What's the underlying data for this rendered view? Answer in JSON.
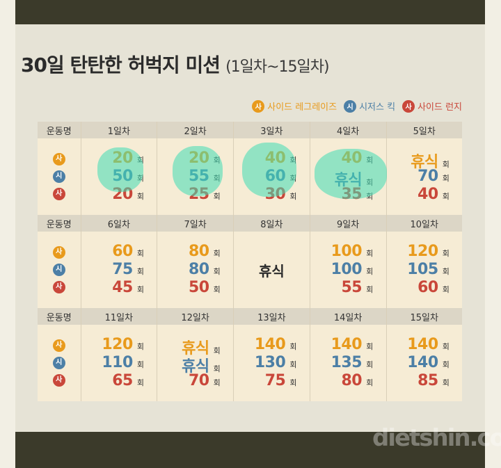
{
  "title": "30일 탄탄한 허벅지 미션",
  "subtitle": "(1일차~15일차)",
  "legend": [
    {
      "badge": "사",
      "label": "사이드 레그레이즈",
      "color": "#e89a1c"
    },
    {
      "badge": "시",
      "label": "시저스 킥",
      "color": "#4c7fa6"
    },
    {
      "badge": "사",
      "label": "사이드 런지",
      "color": "#c9473a"
    }
  ],
  "col_header": "운동명",
  "unit": "회",
  "rest": "휴식",
  "days": [
    {
      "label": "1일차",
      "v": [
        "20",
        "50",
        "20"
      ]
    },
    {
      "label": "2일차",
      "v": [
        "20",
        "55",
        "25"
      ]
    },
    {
      "label": "3일차",
      "v": [
        "40",
        "60",
        "30"
      ]
    },
    {
      "label": "4일차",
      "v": [
        "40",
        "휴식",
        "35"
      ]
    },
    {
      "label": "5일차",
      "v": [
        "휴식",
        "70",
        "40"
      ]
    },
    {
      "label": "6일차",
      "v": [
        "60",
        "75",
        "45"
      ]
    },
    {
      "label": "7일차",
      "v": [
        "80",
        "80",
        "50"
      ]
    },
    {
      "label": "8일차",
      "v": [
        "휴식"
      ]
    },
    {
      "label": "9일차",
      "v": [
        "100",
        "100",
        "55"
      ]
    },
    {
      "label": "10일차",
      "v": [
        "120",
        "105",
        "60"
      ]
    },
    {
      "label": "11일차",
      "v": [
        "120",
        "110",
        "65"
      ]
    },
    {
      "label": "12일차",
      "v": [
        "휴식",
        "휴식",
        "70"
      ]
    },
    {
      "label": "13일차",
      "v": [
        "140",
        "130",
        "75"
      ]
    },
    {
      "label": "14일차",
      "v": [
        "140",
        "135",
        "80"
      ]
    },
    {
      "label": "15일차",
      "v": [
        "140",
        "140",
        "85"
      ]
    }
  ],
  "watermark": "dietshin.com"
}
